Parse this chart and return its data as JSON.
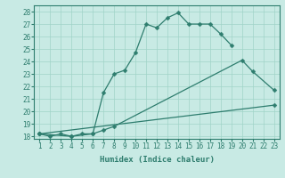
{
  "title": "",
  "xlabel": "Humidex (Indice chaleur)",
  "background_color": "#c8eae4",
  "line_color": "#2e7d6e",
  "grid_color": "#a0d4c8",
  "xticks": [
    1,
    2,
    3,
    4,
    5,
    6,
    7,
    8,
    9,
    10,
    11,
    12,
    13,
    14,
    15,
    16,
    17,
    18,
    19,
    20,
    21,
    22,
    23
  ],
  "yticks": [
    18,
    19,
    20,
    21,
    22,
    23,
    24,
    25,
    26,
    27,
    28
  ],
  "xlim": [
    0.5,
    23.5
  ],
  "ylim": [
    17.8,
    28.5
  ],
  "line1_x": [
    1,
    2,
    3,
    4,
    5,
    6,
    7,
    8,
    9,
    10,
    11,
    12,
    13,
    14,
    15,
    16,
    17,
    18,
    19
  ],
  "line1_y": [
    18.2,
    18.0,
    18.2,
    18.0,
    18.2,
    18.2,
    21.5,
    23.0,
    23.3,
    24.7,
    27.0,
    26.7,
    27.5,
    27.9,
    27.0,
    27.0,
    27.0,
    26.2,
    25.3
  ],
  "line2_x": [
    1,
    4,
    6,
    7,
    8,
    20,
    21,
    23
  ],
  "line2_y": [
    18.2,
    18.0,
    18.2,
    18.5,
    18.8,
    24.1,
    23.2,
    21.7
  ],
  "line3_x": [
    1,
    23
  ],
  "line3_y": [
    18.2,
    20.5
  ],
  "tick_fontsize": 5.5,
  "xlabel_fontsize": 6.5,
  "marker_size": 2.5,
  "linewidth": 0.9
}
